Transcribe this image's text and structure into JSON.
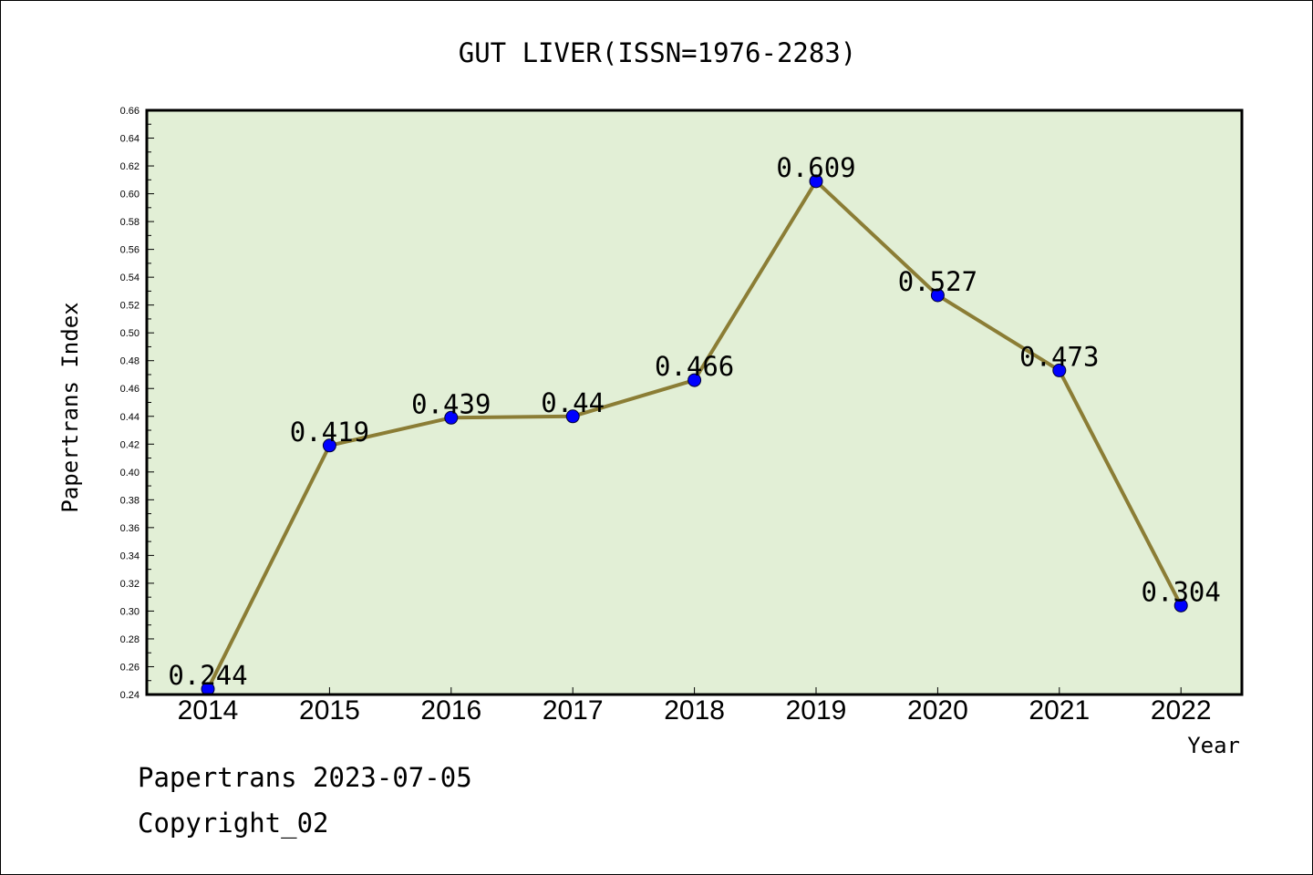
{
  "chart_data": {
    "type": "line",
    "title": "GUT LIVER(ISSN=1976-2283)",
    "xlabel": "Year",
    "ylabel": "Papertrans Index",
    "categories": [
      "2014",
      "2015",
      "2016",
      "2017",
      "2018",
      "2019",
      "2020",
      "2021",
      "2022"
    ],
    "values": [
      0.244,
      0.419,
      0.439,
      0.44,
      0.466,
      0.609,
      0.527,
      0.473,
      0.304
    ],
    "data_labels": [
      "0.244",
      "0.419",
      "0.439",
      "0.44",
      "0.466",
      "0.609",
      "0.527",
      "0.473",
      "0.304"
    ],
    "ylim": [
      0.24,
      0.66
    ],
    "yticks": [
      "0.24",
      "0.26",
      "0.28",
      "0.30",
      "0.32",
      "0.34",
      "0.36",
      "0.38",
      "0.40",
      "0.42",
      "0.44",
      "0.46",
      "0.48",
      "0.50",
      "0.52",
      "0.54",
      "0.56",
      "0.58",
      "0.60",
      "0.62",
      "0.64",
      "0.66"
    ],
    "grid": false,
    "colors": {
      "plot_background": "#e2efd6",
      "line": "#8b7d35",
      "marker": "#0000ff"
    }
  },
  "footer": {
    "line1": "Papertrans 2023-07-05",
    "line2": "Copyright_02"
  }
}
